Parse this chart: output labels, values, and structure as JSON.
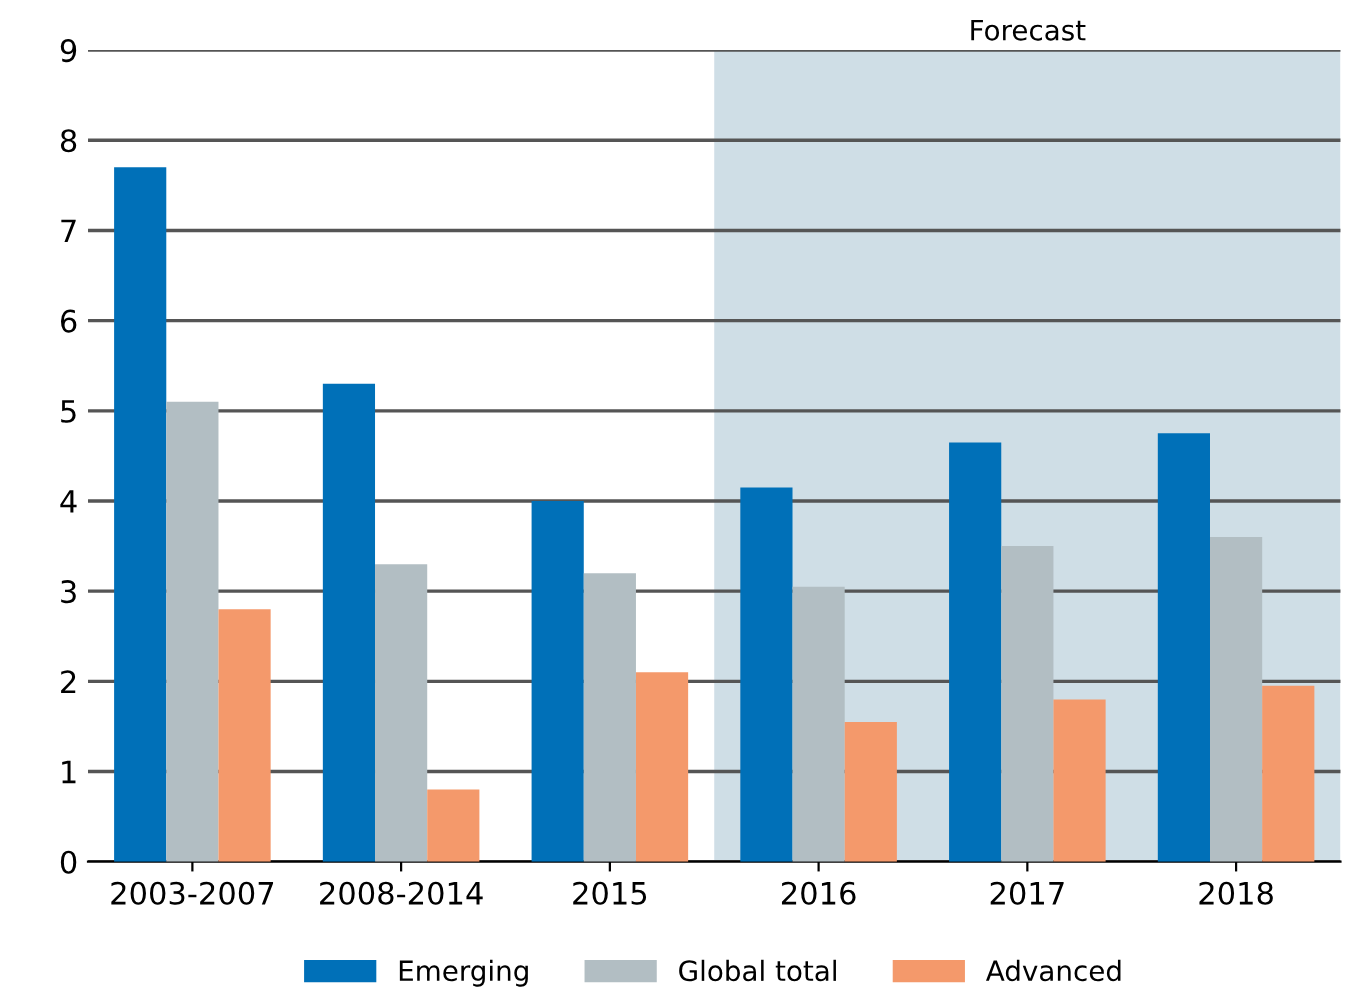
{
  "chart_data": {
    "type": "bar",
    "categories": [
      "2003-2007",
      "2008-2014",
      "2015",
      "2016",
      "2017",
      "2018"
    ],
    "series": [
      {
        "name": "Emerging",
        "color": "#0070b8",
        "values": [
          7.7,
          5.3,
          4.0,
          4.15,
          4.65,
          4.75
        ]
      },
      {
        "name": "Global total",
        "color": "#b2bec3",
        "values": [
          5.1,
          3.3,
          3.2,
          3.05,
          3.5,
          3.6
        ]
      },
      {
        "name": "Advanced",
        "color": "#f4996b",
        "values": [
          2.8,
          0.8,
          2.1,
          1.55,
          1.8,
          1.95
        ]
      }
    ],
    "ylim": [
      0,
      9
    ],
    "yticks": [
      0,
      1,
      2,
      3,
      4,
      5,
      6,
      7,
      8,
      9
    ],
    "grid": "y",
    "legend": "bottom",
    "bands": [
      {
        "axis": "x",
        "from": "2016",
        "to": "2018",
        "label": "Forecast",
        "color": "#cfdee6"
      }
    ]
  }
}
